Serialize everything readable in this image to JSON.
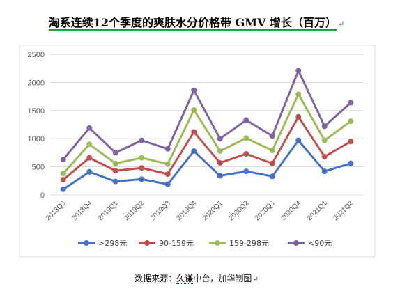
{
  "page": {
    "title": "淘系连续12个季度的爽肤水分价格带 GMV 增长（百万）",
    "caption_source": "数据来源：",
    "caption_jiu": "久谦",
    "caption_rest": "中台，加华制图",
    "return_mark": "↵"
  },
  "chart_data": {
    "type": "line",
    "categories": [
      "2018Q3",
      "2018Q4",
      "2019Q1",
      "2019Q2",
      "2019Q3",
      "2019Q4",
      "2020Q1",
      "2020Q2",
      "2020Q3",
      "2020Q4",
      "2021Q1",
      "2021Q2"
    ],
    "ylim": [
      0,
      2500
    ],
    "yticks": [
      0,
      500,
      1000,
      1500,
      2000,
      2500
    ],
    "grid": true,
    "legend": "bottom",
    "series": [
      {
        "name": ">298元",
        "color": "#4472c4",
        "values": [
          100,
          410,
          240,
          280,
          190,
          780,
          340,
          420,
          330,
          970,
          420,
          560
        ]
      },
      {
        "name": "90-159元",
        "color": "#c0504d",
        "values": [
          270,
          660,
          430,
          480,
          370,
          1120,
          570,
          730,
          560,
          1390,
          680,
          950
        ]
      },
      {
        "name": "159-298元",
        "color": "#9bbb59",
        "values": [
          380,
          900,
          560,
          660,
          550,
          1510,
          780,
          1010,
          790,
          1790,
          970,
          1310
        ]
      },
      {
        "name": "<90元",
        "color": "#8064a2",
        "values": [
          630,
          1190,
          750,
          970,
          820,
          1860,
          1000,
          1330,
          1050,
          2210,
          1220,
          1640
        ]
      }
    ]
  }
}
